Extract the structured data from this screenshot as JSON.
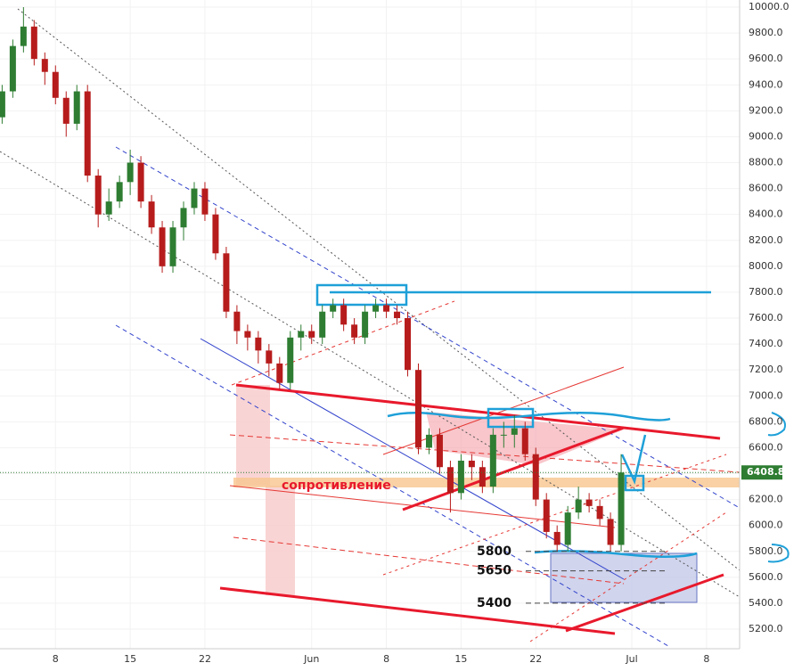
{
  "chart_data": {
    "type": "candlestick",
    "x": [
      2,
      3,
      4,
      5,
      6,
      7,
      8,
      9,
      10,
      11,
      12,
      13,
      14,
      15,
      16,
      17,
      18,
      19,
      20,
      21,
      22,
      23,
      24,
      25,
      26,
      27,
      28,
      29,
      30,
      31,
      32,
      33,
      34,
      35,
      36,
      37,
      38,
      39,
      40,
      41,
      42,
      43,
      44,
      45,
      46,
      47,
      48,
      49,
      50,
      51,
      52,
      53,
      54,
      55,
      56,
      57,
      58,
      59,
      60
    ],
    "open": [
      9150,
      9350,
      9700,
      9850,
      9600,
      9500,
      9300,
      9100,
      9350,
      8700,
      8400,
      8500,
      8650,
      8800,
      8500,
      8300,
      8000,
      8300,
      8450,
      8600,
      8400,
      8100,
      7650,
      7500,
      7450,
      7350,
      7250,
      7100,
      7450,
      7500,
      7450,
      7650,
      7700,
      7550,
      7450,
      7650,
      7700,
      7650,
      7600,
      7200,
      6600,
      6700,
      6450,
      6250,
      6500,
      6450,
      6300,
      6700,
      6700,
      6750,
      6550,
      6200,
      5950,
      5850,
      6100,
      6200,
      6150,
      6050,
      5850
    ],
    "high": [
      9400,
      9750,
      10000,
      9900,
      9650,
      9550,
      9350,
      9400,
      9400,
      8750,
      8600,
      8700,
      8900,
      8850,
      8550,
      8350,
      8350,
      8500,
      8650,
      8650,
      8450,
      8150,
      7700,
      7550,
      7500,
      7400,
      7300,
      7500,
      7550,
      7550,
      7700,
      7750,
      7750,
      7600,
      7700,
      7750,
      7750,
      7700,
      7650,
      7250,
      6750,
      6750,
      6500,
      6550,
      6550,
      6500,
      6750,
      6800,
      6850,
      6800,
      6600,
      6250,
      6000,
      6150,
      6300,
      6250,
      6200,
      6100,
      6550
    ],
    "low": [
      9100,
      9300,
      9650,
      9550,
      9400,
      9250,
      9000,
      9050,
      8650,
      8300,
      8350,
      8450,
      8550,
      8450,
      8250,
      7950,
      7950,
      8200,
      8400,
      8350,
      8050,
      7600,
      7400,
      7350,
      7250,
      7150,
      7050,
      7050,
      7350,
      7400,
      7400,
      7600,
      7500,
      7400,
      7400,
      7600,
      7600,
      7550,
      7150,
      6550,
      6550,
      6400,
      6100,
      6200,
      6350,
      6250,
      6250,
      6600,
      6600,
      6500,
      6150,
      5900,
      5800,
      5800,
      6050,
      6100,
      6000,
      5800,
      5800
    ],
    "close": [
      9350,
      9700,
      9850,
      9600,
      9500,
      9300,
      9100,
      9350,
      8700,
      8400,
      8500,
      8650,
      8800,
      8500,
      8300,
      8000,
      8300,
      8450,
      8600,
      8400,
      8100,
      7650,
      7500,
      7450,
      7350,
      7250,
      7100,
      7450,
      7500,
      7450,
      7650,
      7700,
      7550,
      7450,
      7650,
      7700,
      7650,
      7600,
      7200,
      6600,
      6700,
      6450,
      6250,
      6500,
      6450,
      6300,
      6700,
      6700,
      6750,
      6550,
      6200,
      5950,
      5850,
      6100,
      6200,
      6150,
      6050,
      5850,
      6408.8
    ],
    "up_color": "#2e7d32",
    "down_color": "#b71c1c",
    "xlim": [
      1.8,
      71.1
    ],
    "xticks": [
      {
        "value": 7,
        "label": "8"
      },
      {
        "value": 14,
        "label": "15"
      },
      {
        "value": 21,
        "label": "22"
      },
      {
        "value": 31,
        "label": "Jun"
      },
      {
        "value": 38,
        "label": "8"
      },
      {
        "value": 45,
        "label": "15"
      },
      {
        "value": 52,
        "label": "22"
      },
      {
        "value": 61,
        "label": "Jul"
      },
      {
        "value": 68,
        "label": "8"
      }
    ],
    "ylim": [
      5200,
      10000
    ],
    "yticks": [
      {
        "value": 5200,
        "label": "5200.0"
      },
      {
        "value": 5400,
        "label": "5400.0"
      },
      {
        "value": 5600,
        "label": "5600.0"
      },
      {
        "value": 5800,
        "label": "5800.0"
      },
      {
        "value": 6000,
        "label": "6000.0"
      },
      {
        "value": 6200,
        "label": "6200.0"
      },
      {
        "value": 6400,
        "label": "6400.0"
      },
      {
        "value": 6600,
        "label": "6600.0"
      },
      {
        "value": 6800,
        "label": "6800.0"
      },
      {
        "value": 7000,
        "label": "7000.0"
      },
      {
        "value": 7200,
        "label": "7200.0"
      },
      {
        "value": 7400,
        "label": "7400.0"
      },
      {
        "value": 7600,
        "label": "7600.0"
      },
      {
        "value": 7800,
        "label": "7800.0"
      },
      {
        "value": 8000,
        "label": "8000.0"
      },
      {
        "value": 8200,
        "label": "8200.0"
      },
      {
        "value": 8400,
        "label": "8400.0"
      },
      {
        "value": 8600,
        "label": "8600.0"
      },
      {
        "value": 8800,
        "label": "8800.0"
      },
      {
        "value": 9000,
        "label": "9000.0"
      },
      {
        "value": 9200,
        "label": "9200.0"
      },
      {
        "value": 9400,
        "label": "9400.0"
      },
      {
        "value": 9600,
        "label": "9600.0"
      },
      {
        "value": 9800,
        "label": "9800.0"
      },
      {
        "value": 10000,
        "label": "10000.0"
      }
    ],
    "grid": true,
    "last_price": 6408.8,
    "levels": [
      5800,
      5650,
      5400
    ],
    "annotation": "сопротивление"
  }
}
